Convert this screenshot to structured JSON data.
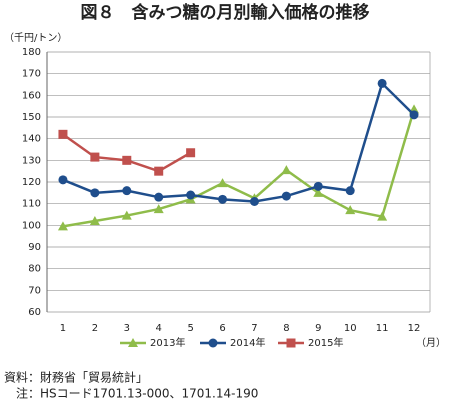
{
  "chart_data": {
    "type": "line",
    "title": "図８　含みつ糖の月別輸入価格の推移",
    "y_label": "（千円/トン）",
    "x_label": "（月）",
    "categories": [
      "1",
      "2",
      "3",
      "4",
      "5",
      "6",
      "7",
      "8",
      "9",
      "10",
      "11",
      "12"
    ],
    "series": [
      {
        "name": "2013年",
        "color": "#8fbc4a",
        "marker": "triangle",
        "values": [
          99.5,
          102,
          104.5,
          107.5,
          112,
          119.5,
          112.5,
          125.5,
          115,
          107,
          104,
          153.5
        ]
      },
      {
        "name": "2014年",
        "color": "#1f4e8c",
        "marker": "circle",
        "values": [
          121,
          115,
          116,
          113,
          114,
          112,
          111,
          113.5,
          118,
          116,
          165.5,
          151
        ]
      },
      {
        "name": "2015年",
        "color": "#c0504d",
        "marker": "square",
        "values": [
          142,
          131.5,
          130,
          125,
          133.5,
          null,
          null,
          null,
          null,
          null,
          null,
          null
        ]
      }
    ],
    "ylim": [
      60,
      180
    ],
    "yticks": [
      60,
      70,
      80,
      90,
      100,
      110,
      120,
      130,
      140,
      150,
      160,
      170,
      180
    ],
    "grid": true,
    "legend": "bottom",
    "notes": [
      "資料：財務省「貿易統計」",
      "　注：HSコード1701.13-000、1701.14-190"
    ]
  }
}
